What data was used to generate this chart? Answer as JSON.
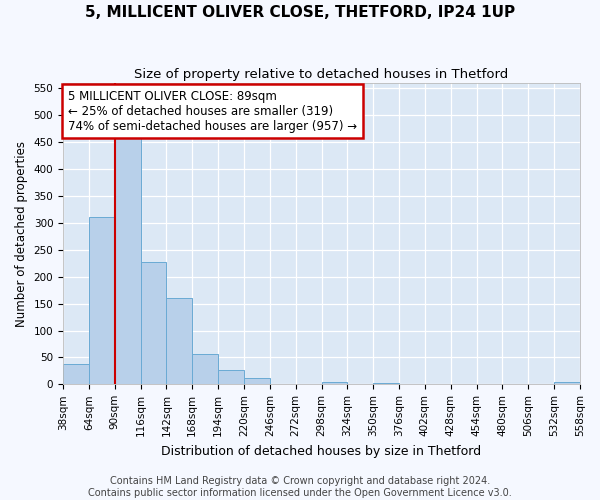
{
  "title": "5, MILLICENT OLIVER CLOSE, THETFORD, IP24 1UP",
  "subtitle": "Size of property relative to detached houses in Thetford",
  "xlabel": "Distribution of detached houses by size in Thetford",
  "ylabel": "Number of detached properties",
  "bar_values": [
    38,
    311,
    457,
    228,
    160,
    57,
    26,
    11,
    0,
    0,
    4,
    0,
    3,
    0,
    0,
    0,
    0,
    0,
    0,
    4
  ],
  "bin_labels": [
    "38sqm",
    "64sqm",
    "90sqm",
    "116sqm",
    "142sqm",
    "168sqm",
    "194sqm",
    "220sqm",
    "246sqm",
    "272sqm",
    "298sqm",
    "324sqm",
    "350sqm",
    "376sqm",
    "402sqm",
    "428sqm",
    "454sqm",
    "480sqm",
    "506sqm",
    "532sqm",
    "558sqm"
  ],
  "bin_edges": [
    38,
    64,
    90,
    116,
    142,
    168,
    194,
    220,
    246,
    272,
    298,
    324,
    350,
    376,
    402,
    428,
    454,
    480,
    506,
    532,
    558
  ],
  "bar_color": "#b8d0ea",
  "bar_edge_color": "#6aaad4",
  "property_line_x": 90,
  "property_line_color": "#cc0000",
  "annotation_text": "5 MILLICENT OLIVER CLOSE: 89sqm\n← 25% of detached houses are smaller (319)\n74% of semi-detached houses are larger (957) →",
  "annotation_box_color": "#ffffff",
  "annotation_box_edge": "#cc0000",
  "ylim": [
    0,
    560
  ],
  "yticks": [
    0,
    50,
    100,
    150,
    200,
    250,
    300,
    350,
    400,
    450,
    500,
    550
  ],
  "plot_bg_color": "#dce8f5",
  "fig_bg_color": "#f5f8ff",
  "grid_color": "#ffffff",
  "footer_text": "Contains HM Land Registry data © Crown copyright and database right 2024.\nContains public sector information licensed under the Open Government Licence v3.0.",
  "title_fontsize": 11,
  "subtitle_fontsize": 9.5,
  "xlabel_fontsize": 9,
  "ylabel_fontsize": 8.5,
  "tick_fontsize": 7.5,
  "annotation_fontsize": 8.5,
  "footer_fontsize": 7
}
